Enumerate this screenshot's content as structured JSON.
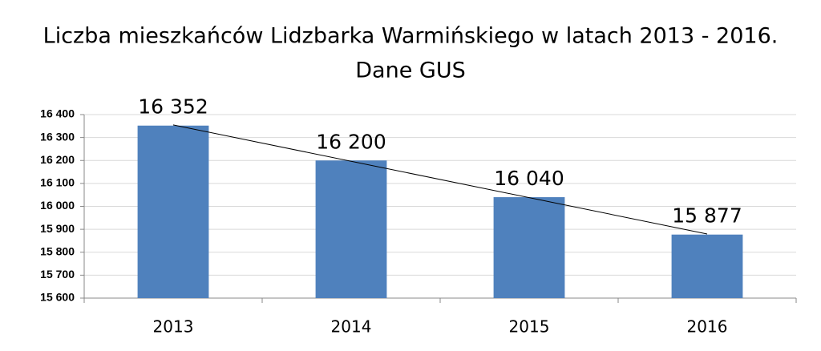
{
  "chart_data": {
    "type": "bar",
    "title": [
      "Liczba mieszkańców Lidzbarka Warmińskiego w latach 2013 - 2016.",
      "Dane GUS"
    ],
    "categories": [
      "2013",
      "2014",
      "2015",
      "2016"
    ],
    "values": [
      16352,
      16200,
      16040,
      15877
    ],
    "value_labels": [
      "16 352",
      "16 200",
      "16 040",
      "15 877"
    ],
    "color": "#4f81bd",
    "ylim": [
      15600,
      16400
    ],
    "yticks": [
      {
        "value": 15600,
        "label": "15 600"
      },
      {
        "value": 15700,
        "label": "15 700"
      },
      {
        "value": 15800,
        "label": "15 800"
      },
      {
        "value": 15900,
        "label": "15 900"
      },
      {
        "value": 16000,
        "label": "16 000"
      },
      {
        "value": 16100,
        "label": "16 100"
      },
      {
        "value": 16200,
        "label": "16 200"
      },
      {
        "value": 16300,
        "label": "16 300"
      },
      {
        "value": 16400,
        "label": "16 400"
      }
    ],
    "grid": true,
    "trendline": true
  }
}
